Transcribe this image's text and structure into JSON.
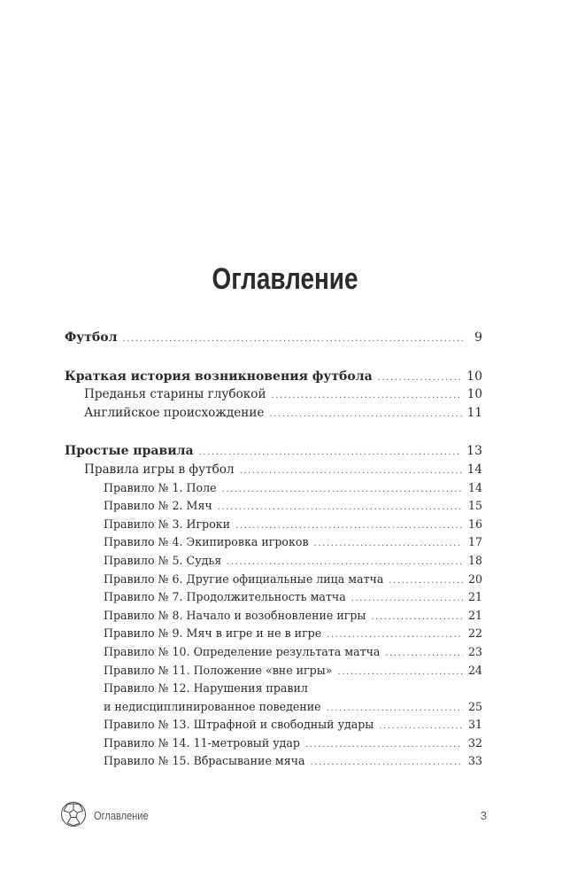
{
  "title": "Оглавление",
  "toc": [
    {
      "label": "Футбол",
      "page": "9",
      "level": 0,
      "gap": false
    },
    {
      "label": "Краткая история возникновения футбола",
      "page": "10",
      "level": 0,
      "gap": true
    },
    {
      "label": "Преданья старины глубокой",
      "page": "10",
      "level": 1
    },
    {
      "label": "Английское происхождение",
      "page": "11",
      "level": 1
    },
    {
      "label": "Простые правила",
      "page": "13",
      "level": 0,
      "gap": true
    },
    {
      "label": "Правила игры в футбол",
      "page": "14",
      "level": 1
    },
    {
      "label": "Правило № 1. Поле",
      "page": "14",
      "level": 2
    },
    {
      "label": "Правило № 2. Мяч",
      "page": "15",
      "level": 2
    },
    {
      "label": "Правило № 3. Игроки",
      "page": "16",
      "level": 2
    },
    {
      "label": "Правило № 4. Экипировка игроков",
      "page": "17",
      "level": 2
    },
    {
      "label": "Правило № 5. Судья",
      "page": "18",
      "level": 2
    },
    {
      "label": "Правило № 6. Другие официальные лица матча",
      "page": "20",
      "level": 2
    },
    {
      "label": "Правило № 7. Продолжительность матча",
      "page": "21",
      "level": 2
    },
    {
      "label": "Правило № 8. Начало и возобновление игры",
      "page": "21",
      "level": 2
    },
    {
      "label": "Правило № 9. Мяч в игре и не в игре",
      "page": "22",
      "level": 2
    },
    {
      "label": "Правило № 10. Определение результата матча",
      "page": "23",
      "level": 2
    },
    {
      "label": "Правило № 11. Положение «вне игры»",
      "page": "24",
      "level": 2
    },
    {
      "label": "Правило № 12. Нарушения правил",
      "label2": "и недисциплинированное поведение",
      "page": "25",
      "level": 2
    },
    {
      "label": "Правило № 13. Штрафной и свободный удары",
      "page": "31",
      "level": 2
    },
    {
      "label": "Правило № 14. 11-метровый удар",
      "page": "32",
      "level": 2
    },
    {
      "label": "Правило № 15. Вбрасывание мяча",
      "page": "33",
      "level": 2
    }
  ],
  "footer": {
    "icon": "soccer-ball-icon",
    "section": "Оглавление",
    "page_number": "3"
  }
}
